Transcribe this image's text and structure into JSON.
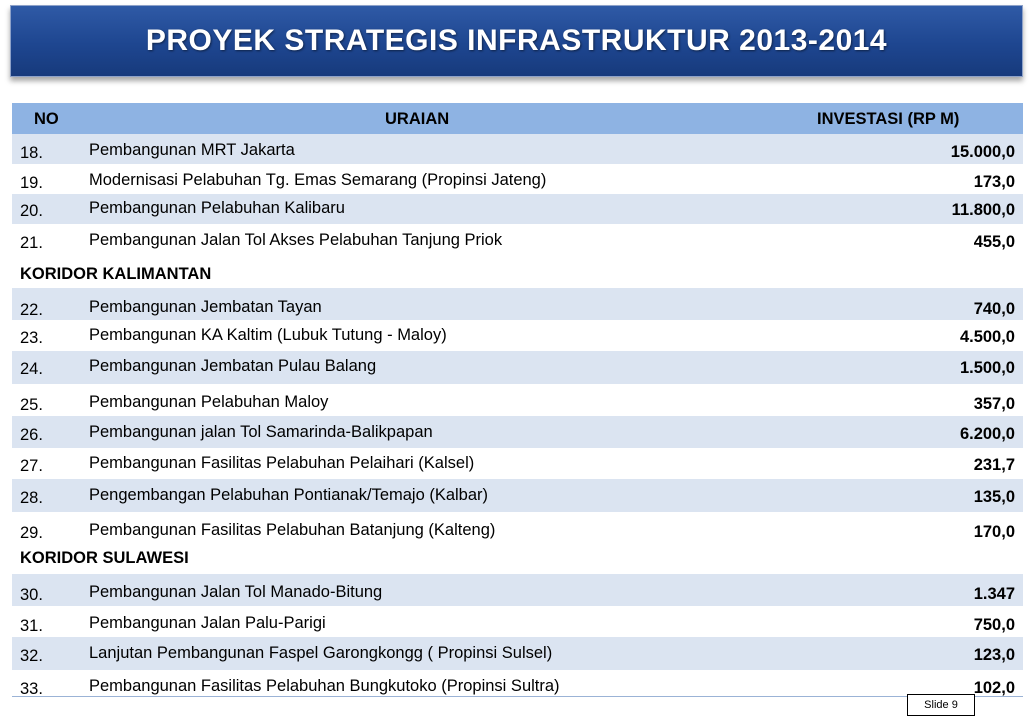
{
  "title": "PROYEK STRATEGIS INFRASTRUKTUR 2013-2014",
  "headers": {
    "no": "NO",
    "uraian": "URAIAN",
    "investasi": "INVESTASI (RP M)"
  },
  "rows": [
    {
      "type": "item",
      "no": "18.",
      "desc": "Pembangunan MRT Jakarta",
      "value": "15.000,0"
    },
    {
      "type": "item",
      "no": "19.",
      "desc": "Modernisasi Pelabuhan Tg. Emas Semarang (Propinsi Jateng)",
      "value": "173,0"
    },
    {
      "type": "item",
      "no": "20.",
      "desc": "Pembangunan Pelabuhan Kalibaru",
      "value": "11.800,0"
    },
    {
      "type": "item",
      "no": "21.",
      "desc": "Pembangunan Jalan Tol Akses Pelabuhan Tanjung Priok",
      "value": "455,0"
    },
    {
      "type": "section",
      "label": "KORIDOR KALIMANTAN"
    },
    {
      "type": "item",
      "no": "22.",
      "desc": "Pembangunan Jembatan Tayan",
      "value": "740,0"
    },
    {
      "type": "item",
      "no": "23.",
      "desc": "Pembangunan KA  Kaltim (Lubuk Tutung - Maloy)",
      "value": "4.500,0"
    },
    {
      "type": "item",
      "no": "24.",
      "desc": "Pembangunan Jembatan Pulau Balang",
      "value": "1.500,0"
    },
    {
      "type": "item",
      "no": "25.",
      "desc": "Pembangunan Pelabuhan Maloy",
      "value": "357,0"
    },
    {
      "type": "item",
      "no": "26.",
      "desc": "Pembangunan jalan Tol Samarinda-Balikpapan",
      "value": "6.200,0"
    },
    {
      "type": "item",
      "no": "27.",
      "desc": "Pembangunan Fasilitas Pelabuhan Pelaihari (Kalsel)",
      "value": "231,7"
    },
    {
      "type": "item",
      "no": "28.",
      "desc": "Pengembangan Pelabuhan Pontianak/Temajo (Kalbar)",
      "value": "135,0"
    },
    {
      "type": "item",
      "no": "29.",
      "desc": "Pembangunan Fasilitas Pelabuhan Batanjung (Kalteng)",
      "value": "170,0"
    },
    {
      "type": "section",
      "label": "KORIDOR SULAWESI"
    },
    {
      "type": "item",
      "no": "30.",
      "desc": "Pembangunan Jalan Tol Manado-Bitung",
      "value": "1.347"
    },
    {
      "type": "item",
      "no": "31.",
      "desc": "Pembangunan Jalan Palu-Parigi",
      "value": "750,0"
    },
    {
      "type": "item",
      "no": "32.",
      "desc": "Lanjutan Pembangunan Faspel Garongkongg ( Propinsi Sulsel)",
      "value": "123,0"
    },
    {
      "type": "item",
      "no": "33.",
      "desc": "Pembangunan Fasilitas Pelabuhan Bungkutoko (Propinsi Sultra)",
      "value": "102,0"
    }
  ],
  "slide_label": "Slide 9"
}
